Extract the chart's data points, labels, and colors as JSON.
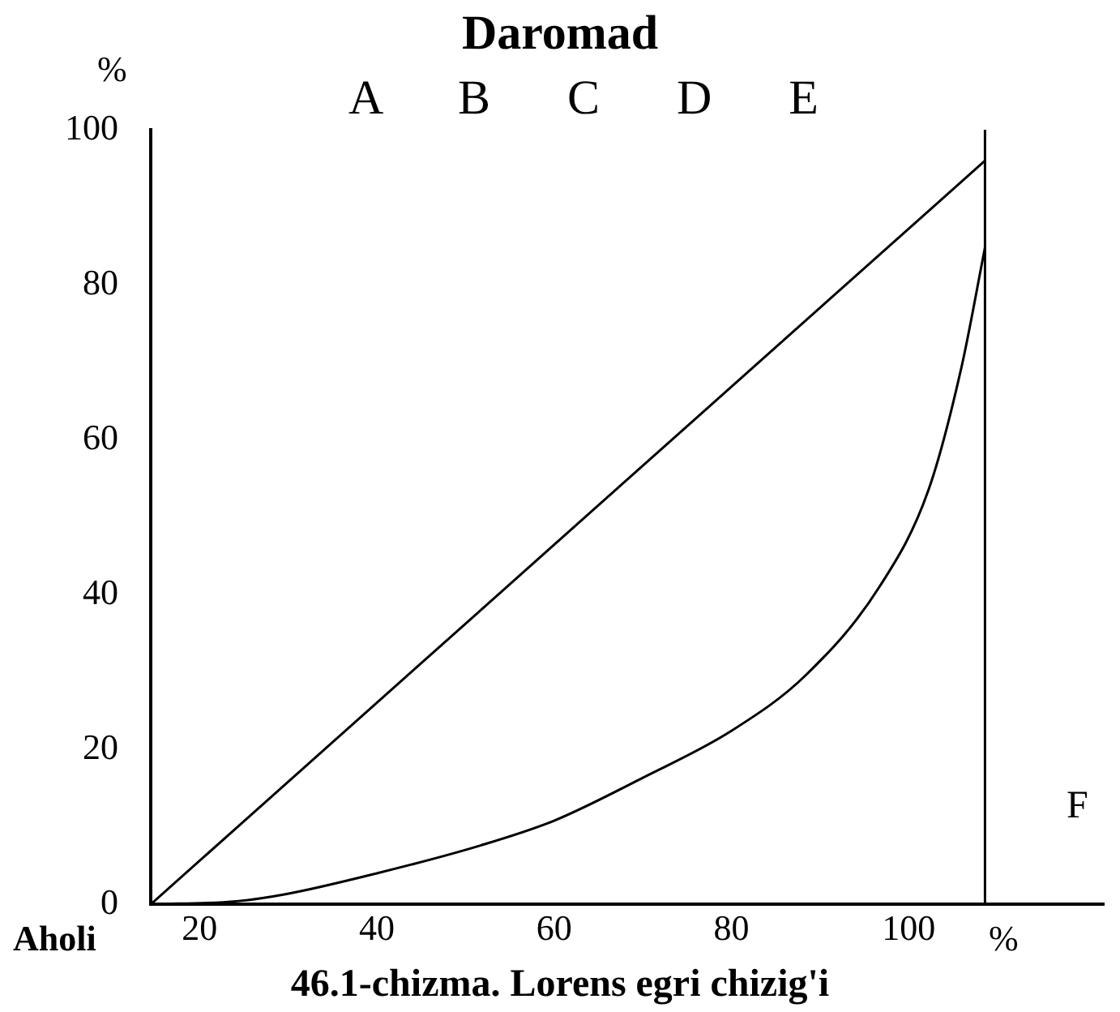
{
  "chart_data": {
    "type": "line",
    "title": "Daromad",
    "subtitle": "A B C D E",
    "xlabel": "%",
    "ylabel": "%",
    "annotations": [
      "Aholi",
      "F",
      "46.1-chizma. Lorens egri chizig'i"
    ],
    "xlim": [
      14.5,
      122
    ],
    "xticks": [
      20,
      40,
      60,
      80,
      100
    ],
    "ylim": [
      0,
      100
    ],
    "yticks": [
      0,
      20,
      40,
      60,
      80,
      100
    ],
    "grid": false,
    "legend": false,
    "marker": "none",
    "line_style": "solid",
    "series": [
      {
        "color": "#000000",
        "x": [
          14.5,
          108.6
        ],
        "values": [
          0,
          96
        ]
      },
      {
        "color": "#000000",
        "x": [
          14.5,
          24.2,
          29.7,
          40,
          51.7,
          60,
          70.1,
          80,
          88.4,
          96.7,
          102.2,
          105.9,
          108.6
        ],
        "values": [
          0,
          0.4,
          1.3,
          4,
          7.6,
          10.8,
          16.4,
          22.4,
          29.6,
          41,
          53.4,
          69.1,
          84.8
        ]
      }
    ],
    "ref_lines": [
      {
        "axis": "x",
        "value": 108.6,
        "color": "#000000"
      }
    ]
  }
}
